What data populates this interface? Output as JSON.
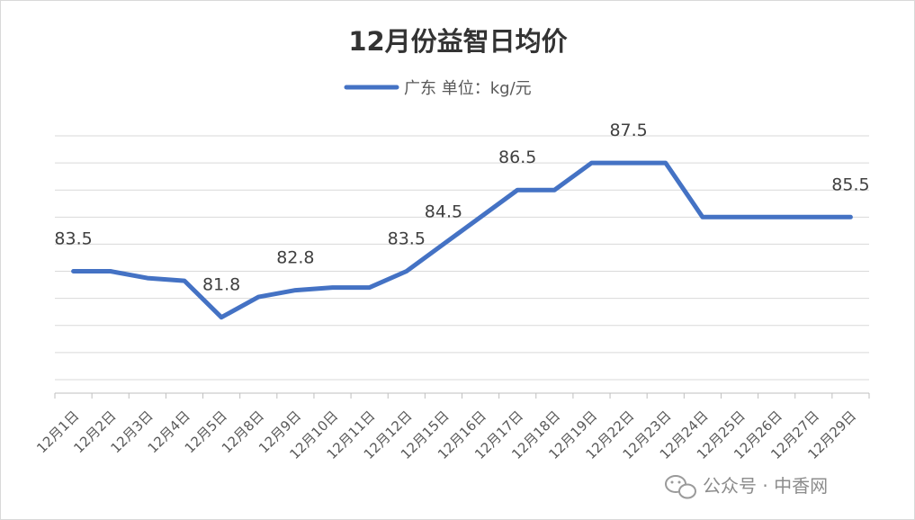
{
  "chart_data": {
    "type": "line",
    "title": "12月份益智日均价",
    "legend": {
      "label": "广东 单位：kg/元",
      "position": "top"
    },
    "xlabel": "",
    "ylabel": "",
    "ylim": [
      79,
      88.5
    ],
    "grid": true,
    "categories": [
      "12月1日",
      "12月2日",
      "12月3日",
      "12月4日",
      "12月5日",
      "12月8日",
      "12月9日",
      "12月10日",
      "12月11日",
      "12月12日",
      "12月15日",
      "12月16日",
      "12月17日",
      "12月18日",
      "12月19日",
      "12月22日",
      "12月23日",
      "12月24日",
      "12月25日",
      "12月26日",
      "12月27日",
      "12月29日"
    ],
    "series": [
      {
        "name": "广东 单位：kg/元",
        "color": "#4472c4",
        "values": [
          83.5,
          83.5,
          83.25,
          83.15,
          81.8,
          82.55,
          82.8,
          82.9,
          82.9,
          83.5,
          84.5,
          85.5,
          86.5,
          86.5,
          87.5,
          87.5,
          87.5,
          85.5,
          85.5,
          85.5,
          85.5,
          85.5
        ],
        "data_labels": [
          {
            "index": 0,
            "text": "83.5"
          },
          {
            "index": 4,
            "text": "81.8"
          },
          {
            "index": 6,
            "text": "82.8"
          },
          {
            "index": 9,
            "text": "83.5"
          },
          {
            "index": 10,
            "text": "84.5"
          },
          {
            "index": 12,
            "text": "86.5"
          },
          {
            "index": 15,
            "text": "87.5"
          },
          {
            "index": 21,
            "text": "85.5"
          }
        ]
      }
    ]
  },
  "watermark": {
    "text": "公众号 · 中香网",
    "icon": "wechat-icon"
  }
}
